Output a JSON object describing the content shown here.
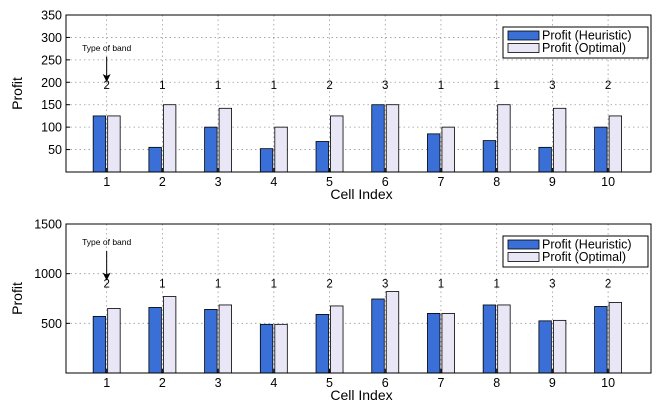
{
  "colors": {
    "heuristic": "#3a6fd8",
    "optimal": "#e9e7f6",
    "grid": "#9a9a9a"
  },
  "chart_data": [
    {
      "type": "bar",
      "xlabel": "Cell Index",
      "ylabel": "Profit",
      "ylim": [
        0,
        350
      ],
      "yticks": [
        50,
        100,
        150,
        200,
        250,
        300,
        350
      ],
      "grid": true,
      "legend_position": "top-right",
      "categories": [
        "1",
        "2",
        "3",
        "4",
        "5",
        "6",
        "7",
        "8",
        "9",
        "10"
      ],
      "series": [
        {
          "name": "Profit (Heuristic)",
          "values": [
            125,
            55,
            100,
            52,
            68,
            150,
            85,
            70,
            55,
            100
          ]
        },
        {
          "name": "Profit (Optimal)",
          "values": [
            125,
            150,
            142,
            100,
            125,
            150,
            100,
            150,
            142,
            125
          ]
        }
      ],
      "band_labels": [
        "2",
        "1",
        "1",
        "1",
        "2",
        "3",
        "1",
        "1",
        "3",
        "2"
      ],
      "band_label_value": 185,
      "annotation": {
        "text": "Type of band",
        "category_index": 0,
        "value": 270
      }
    },
    {
      "type": "bar",
      "xlabel": "Cell Index",
      "ylabel": "Profit",
      "ylim": [
        0,
        1500
      ],
      "yticks": [
        500,
        1000,
        1500
      ],
      "grid": true,
      "legend_position": "top-right",
      "categories": [
        "1",
        "2",
        "3",
        "4",
        "5",
        "6",
        "7",
        "8",
        "9",
        "10"
      ],
      "series": [
        {
          "name": "Profit (Heuristic)",
          "values": [
            570,
            660,
            640,
            490,
            590,
            745,
            600,
            685,
            525,
            670
          ]
        },
        {
          "name": "Profit (Optimal)",
          "values": [
            650,
            770,
            685,
            490,
            675,
            820,
            600,
            685,
            530,
            710
          ]
        }
      ],
      "band_labels": [
        "2",
        "1",
        "1",
        "1",
        "2",
        "3",
        "1",
        "1",
        "3",
        "2"
      ],
      "band_label_value": 860,
      "annotation": {
        "text": "Type of band",
        "category_index": 0,
        "value": 1290
      }
    }
  ]
}
